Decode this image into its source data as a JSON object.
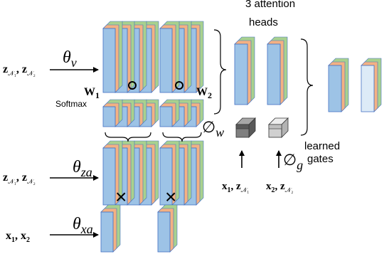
{
  "labels": {
    "heads_line1": "3 attention",
    "heads_line2": "heads",
    "learned_line1": "learned",
    "learned_line2": "gates",
    "softmax": "Softmax",
    "theta_v": "θ",
    "theta_v_sub": "v",
    "theta_za": "θ",
    "theta_za_sub": "za",
    "theta_xa": "θ",
    "theta_xa_sub": "xa",
    "phi_w": "∅",
    "phi_w_sub": "w",
    "phi_g": "∅",
    "phi_g_sub": "g",
    "W1": "W",
    "W1_sub": "1",
    "W2": "W",
    "W2_sub": "2",
    "compose1": "∘",
    "compose2": "∘",
    "times1": "×",
    "times2": "×",
    "input_v": "z",
    "input_v_sub1": "𝒩₁",
    "input_v_mid": ", z",
    "input_v_sub2": "𝒩₂",
    "input_za": "z",
    "input_za_sub1": "𝒩₁",
    "input_za_mid": ", z",
    "input_za_sub2": "𝒩₂",
    "input_xa_a": "x",
    "input_xa_sub1": "1",
    "input_xa_mid": ", x",
    "input_xa_sub2": "2",
    "gate_in1_a": "x",
    "gate_in1_sub1": "1",
    "gate_in1_mid": ", z",
    "gate_in1_sub2": "𝒩₁",
    "gate_in2_a": "x",
    "gate_in2_sub1": "2",
    "gate_in2_mid": ", z",
    "gate_in2_sub2": "𝒩₂"
  },
  "colors": {
    "blue": "#9dc3e6",
    "blue_top": "#b4d2ee",
    "orange": "#f4b183",
    "green": "#a9d18e",
    "gray_dark": "#7f7f7f",
    "gray_light": "#d0d0d0",
    "outline": "#4472c4",
    "ink": "#000000"
  }
}
